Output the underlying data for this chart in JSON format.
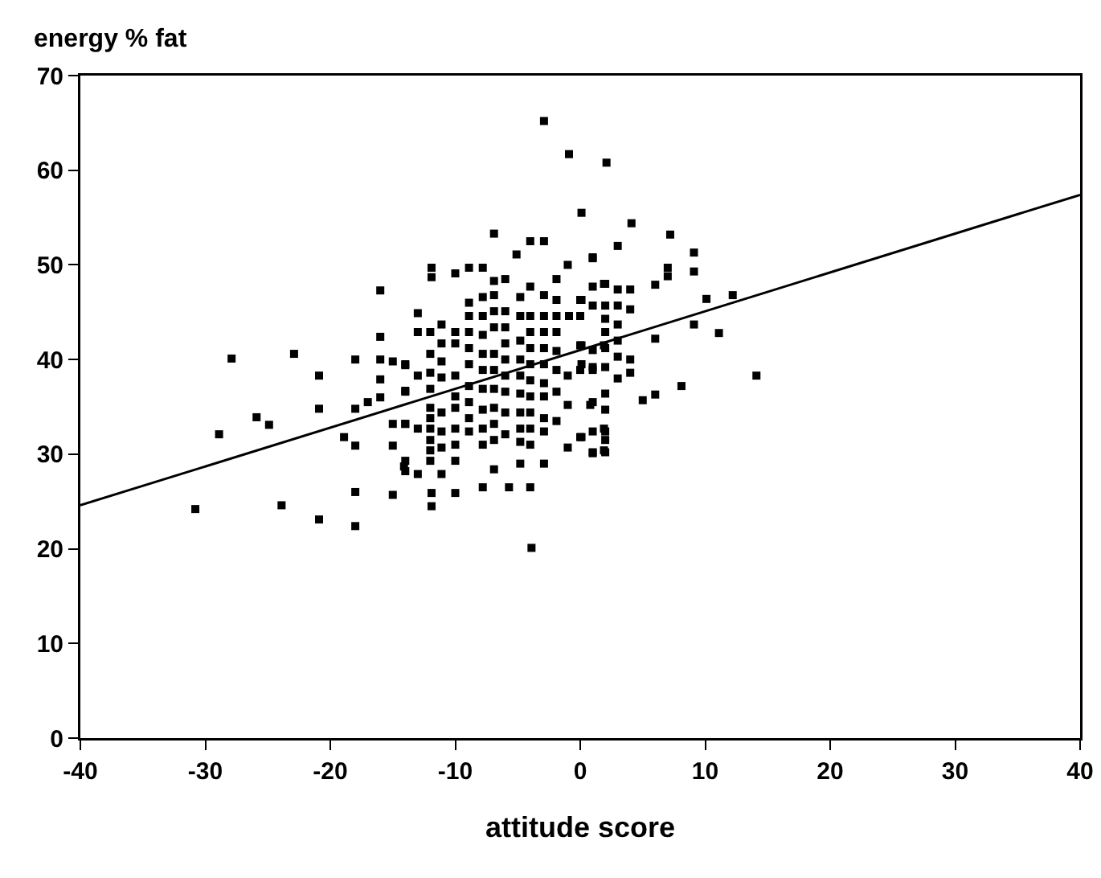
{
  "chart_data": {
    "type": "scatter",
    "xlabel": "attitude score",
    "ylabel": "energy % fat",
    "xlim": [
      -40,
      40
    ],
    "xticks": [
      -40,
      -30,
      -20,
      -10,
      0,
      10,
      20,
      30,
      40
    ],
    "ylim": [
      0,
      70
    ],
    "yticks": [
      0,
      10,
      20,
      30,
      40,
      50,
      60,
      70
    ],
    "grid": false,
    "series": [
      {
        "marker": "square",
        "color": "#000000",
        "x": [
          -30.8,
          -27.9,
          -22.9,
          -28.9,
          -25.9,
          -24.9,
          -20.9,
          -20.9,
          -23.9,
          -20.9,
          -18.0,
          -18.0,
          -18.0,
          -18.0,
          -18.0,
          -18.9,
          -16.0,
          -16.0,
          -16.0,
          -16.0,
          -16.0,
          -17.0,
          -15.0,
          -15.0,
          -15.0,
          -15.0,
          -14.0,
          -14.0,
          -14.0,
          -14.0,
          -14.0,
          -2.9,
          -0.9,
          2.1,
          0.1,
          -6.9,
          -3.9,
          -11.9,
          -11.9,
          -10.0,
          -8.9,
          -7.8,
          -4.0,
          -2.9,
          -5.1,
          -11.9,
          -11.9,
          -10.0,
          -7.8,
          -5.7,
          -4.0,
          -13.0,
          -11.1,
          -6.9,
          -4.8,
          -2.9,
          -14.1,
          -1.0,
          0.1,
          1.0,
          1.9,
          1.9,
          0.8,
          -1.0,
          -1.9,
          -1.9,
          -1.0,
          0.1,
          1.0,
          0.1,
          1.0,
          1.9,
          -0.9,
          -1.9,
          -1.9,
          -1.0,
          1.0,
          1.9,
          0.1,
          -12,
          -12,
          -12,
          -12,
          -12,
          -12,
          -12,
          -12,
          -12,
          -12,
          -10,
          -10,
          -10,
          -10,
          -10,
          -10,
          -10,
          -10,
          -8.9,
          -8.9,
          -8.9,
          -8.9,
          -8.9,
          -8.9,
          -8.9,
          -8.9,
          -8.9,
          -7.8,
          -7.8,
          -7.8,
          -7.8,
          -7.8,
          -7.8,
          -7.8,
          -7.8,
          -7.8,
          -6.9,
          -6.9,
          -6.9,
          -6.9,
          -6.9,
          -6.9,
          -6.9,
          -6.9,
          -6.9,
          -6.9,
          -6.0,
          -6.0,
          -6.0,
          -6.0,
          -6.0,
          -6.0,
          -6.0,
          -6.0,
          -6.0,
          -4.8,
          -4.8,
          -4.8,
          -4.8,
          -4.8,
          -4.8,
          -4.8,
          -4.8,
          -4.8,
          -4.0,
          -4.0,
          -4.0,
          -4.0,
          -4.0,
          -4.0,
          -4.0,
          -4.0,
          -4.0,
          -4.0,
          -2.9,
          -2.9,
          -2.9,
          -2.9,
          -2.9,
          -2.9,
          -2.9,
          -2.9,
          -2.9,
          -1.9,
          -1.9,
          -1.9,
          -1.9,
          -13,
          -13,
          -13,
          -13,
          -11.1,
          -11.1,
          -11.1,
          -11.1,
          -11.1,
          -11.1,
          -11.1,
          -14,
          -14,
          -14,
          4.1,
          7.2,
          3.0,
          9.1,
          9.1,
          7.0,
          7.0,
          6.0,
          10.1,
          12.2,
          11.1,
          9.1,
          6.0,
          14.1,
          8.1,
          6.0,
          5.0,
          4.0,
          4.0,
          4.0,
          4.0,
          3.0,
          3.0,
          3.0,
          3.0,
          3.0,
          3.0,
          2.0,
          2.0,
          2.0,
          2.0,
          2.0,
          2.0,
          2.0,
          2.0,
          2.0,
          2.0,
          2.0,
          1.0,
          1.0,
          1.0,
          1.0,
          1.0,
          1.0,
          1.0,
          0.0,
          0.0,
          0.0,
          0.0,
          0.0
        ],
        "values": [
          24.2,
          40.1,
          40.6,
          32.1,
          33.9,
          33.1,
          38.3,
          34.8,
          24.6,
          23.1,
          22.4,
          26.0,
          30.9,
          34.8,
          40.0,
          31.8,
          47.3,
          42.4,
          40.0,
          37.9,
          36.0,
          35.5,
          39.8,
          33.2,
          30.9,
          25.7,
          39.4,
          36.7,
          33.2,
          29.3,
          28.2,
          65.2,
          61.7,
          60.8,
          55.5,
          53.3,
          20.1,
          49.7,
          48.7,
          49.1,
          49.7,
          49.7,
          52.5,
          52.5,
          51.1,
          24.5,
          25.9,
          25.9,
          26.5,
          26.5,
          26.5,
          27.9,
          27.9,
          28.4,
          29.0,
          29.0,
          28.7,
          30.7,
          31.8,
          30.1,
          30.4,
          32.7,
          35.2,
          35.2,
          33.5,
          36.6,
          38.3,
          39.5,
          39.2,
          41.5,
          41.0,
          41.5,
          44.6,
          46.3,
          48.5,
          50.0,
          50.8,
          48.0,
          46.3,
          42.9,
          40.6,
          38.6,
          36.9,
          34.9,
          33.8,
          32.7,
          31.5,
          30.4,
          29.3,
          42.9,
          41.7,
          38.3,
          36.1,
          34.9,
          32.7,
          31.0,
          29.3,
          46.0,
          44.6,
          42.9,
          41.2,
          39.5,
          37.2,
          35.5,
          33.8,
          32.4,
          46.6,
          44.6,
          42.6,
          40.6,
          38.9,
          36.9,
          34.7,
          32.7,
          31.0,
          48.3,
          46.8,
          45.1,
          43.4,
          40.6,
          38.9,
          36.9,
          34.9,
          33.2,
          31.5,
          48.5,
          45.1,
          43.4,
          41.7,
          40.0,
          38.3,
          36.6,
          34.4,
          32.1,
          46.6,
          44.6,
          42.0,
          40.0,
          38.3,
          36.4,
          34.4,
          32.7,
          31.3,
          47.7,
          44.6,
          42.9,
          41.2,
          39.5,
          37.8,
          36.1,
          34.4,
          32.7,
          31.0,
          46.8,
          44.6,
          42.9,
          41.2,
          39.5,
          37.5,
          36.1,
          33.8,
          32.4,
          44.6,
          42.9,
          40.9,
          38.9,
          44.9,
          42.9,
          38.3,
          32.7,
          43.7,
          41.7,
          39.8,
          38.1,
          34.4,
          32.4,
          30.7,
          39.5,
          36.6,
          33.2,
          54.4,
          53.2,
          52.0,
          51.3,
          49.3,
          49.7,
          48.8,
          47.9,
          46.4,
          46.8,
          42.8,
          43.7,
          42.2,
          38.3,
          37.2,
          36.3,
          35.7,
          47.4,
          45.3,
          40.0,
          38.6,
          47.4,
          45.7,
          43.7,
          42.0,
          40.3,
          38.0,
          48.0,
          45.7,
          44.3,
          42.9,
          41.2,
          39.2,
          36.4,
          34.7,
          32.4,
          31.5,
          30.2,
          50.7,
          47.7,
          45.7,
          38.9,
          35.5,
          32.4,
          30.2,
          46.3,
          44.6,
          41.5,
          38.9,
          31.8
        ]
      },
      {
        "type": "line",
        "marker": "none",
        "line_style": "solid",
        "color": "#000000",
        "x": [
          -40,
          40
        ],
        "values": [
          24.6,
          57.4
        ]
      }
    ]
  }
}
